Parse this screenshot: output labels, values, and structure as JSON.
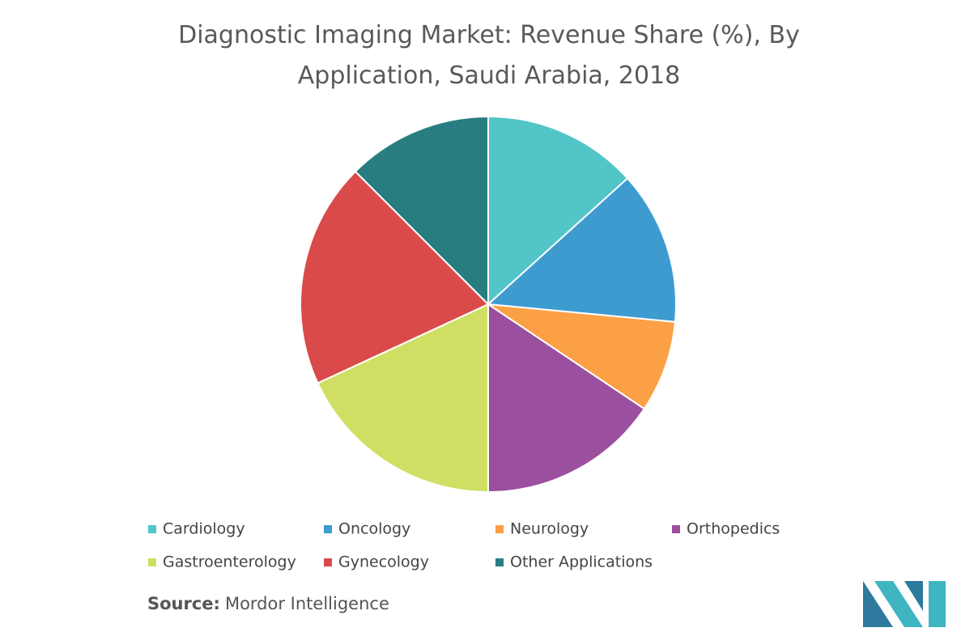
{
  "chart_data": {
    "type": "pie",
    "title": "Diagnostic Imaging Market: Revenue Share (%), By Application, Saudi Arabia, 2018",
    "categories": [
      "Cardiology",
      "Oncology",
      "Neurology",
      "Orthopedics",
      "Gastroenterology",
      "Gynecology",
      "Other Applications"
    ],
    "values": [
      13.3,
      13.2,
      7.9,
      15.6,
      18.1,
      19.4,
      12.5
    ],
    "colors": [
      "#52c5c8",
      "#3e9bd0",
      "#fba044",
      "#9b4f9f",
      "#d0df63",
      "#db4a4a",
      "#297d80"
    ],
    "source_label": "Source:",
    "source": "Mordor Intelligence"
  }
}
